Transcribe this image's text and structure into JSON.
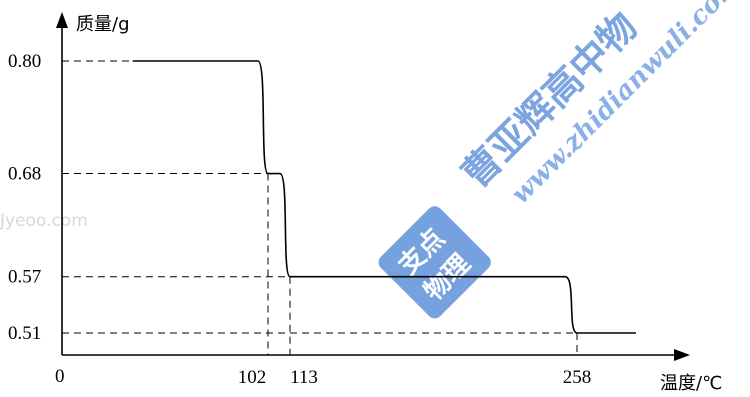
{
  "chart_data": {
    "type": "line",
    "ylabel": "质量/g",
    "xlabel": "温度/℃",
    "origin_label": "0",
    "x_ticks": [
      102,
      113,
      258
    ],
    "y_ticks": [
      0.8,
      0.68,
      0.57,
      0.51
    ],
    "y_tick_labels": [
      "0.80",
      "0.68",
      "0.57",
      "0.51"
    ],
    "x_tick_labels": [
      "102",
      "113",
      "258"
    ],
    "series": [
      {
        "points": [
          [
            35,
            0.8
          ],
          [
            97,
            0.8
          ],
          [
            102,
            0.68
          ],
          [
            108,
            0.68
          ],
          [
            113,
            0.57
          ],
          [
            252,
            0.57
          ],
          [
            258,
            0.51
          ],
          [
            285,
            0.51
          ]
        ]
      }
    ],
    "guides": "dashed lines from each step to both axes",
    "grid": false
  },
  "watermarks": {
    "brand_cn": "曹亚辉高中物",
    "url": "www.zhidianwuli.com",
    "badge_top": "支点",
    "badge_bottom": "物理",
    "jyeoo": "Jyeoo.com"
  },
  "colors": {
    "axis": "#000000",
    "curve": "#000000",
    "watermark_blue": "#4f86d6",
    "watermark_gray": "#d8d8d8"
  }
}
